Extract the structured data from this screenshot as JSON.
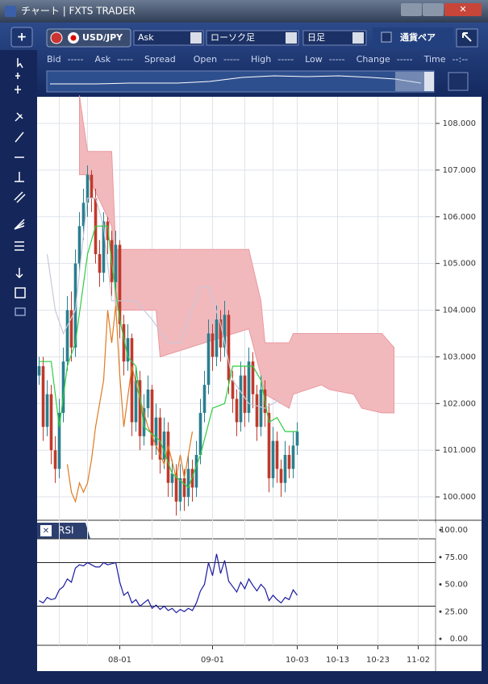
{
  "window": {
    "title": "チャート | FXTS TRADER"
  },
  "toolbar": {
    "symbol": "USD/JPY",
    "price_type": "Ask",
    "chart_type": "ローソク足",
    "period": "日足",
    "checkbox_label": "通貨ペア"
  },
  "quote_bar": [
    {
      "label": "Bid",
      "value": "-----"
    },
    {
      "label": "Ask",
      "value": "-----"
    },
    {
      "label": "Spread"
    },
    {
      "label": "Open",
      "value": "-----"
    },
    {
      "label": "High",
      "value": "-----"
    },
    {
      "label": "Low",
      "value": "-----"
    },
    {
      "label": "Change",
      "value": "-----"
    },
    {
      "label": "Time",
      "value": "--:--"
    }
  ],
  "price_chart": {
    "xlim": [
      -0.5,
      98.3
    ],
    "ylim": [
      99.5,
      108.57
    ],
    "yticks": [
      {
        "value": 100,
        "label": "100.000"
      },
      {
        "value": 101,
        "label": "101.000"
      },
      {
        "value": 102,
        "label": "102.000"
      },
      {
        "value": 103,
        "label": "103.000"
      },
      {
        "value": 104,
        "label": "104.000"
      },
      {
        "value": 105,
        "label": "105.000"
      },
      {
        "value": 106,
        "label": "106.000"
      },
      {
        "value": 107,
        "label": "107.000"
      },
      {
        "value": 108,
        "label": "108.000"
      }
    ],
    "xticks": [
      {
        "value": 20,
        "label": "08-01"
      },
      {
        "value": 43,
        "label": "09-01"
      },
      {
        "value": 64,
        "label": "10-03"
      },
      {
        "value": 74,
        "label": "10-13"
      },
      {
        "value": 84,
        "label": "10-23"
      },
      {
        "value": 94,
        "label": "11-02"
      }
    ],
    "xgrid": [
      5,
      12,
      28,
      35,
      51,
      58
    ],
    "up_color": "#2a7f8f",
    "down_color": "#c0392b",
    "open": [
      102.6,
      102.8,
      101.5,
      102.2,
      101.0,
      100.6,
      101.8,
      102.9,
      104.0,
      103.2,
      105.0,
      105.8,
      106.3,
      106.9,
      106.4,
      105.2,
      104.8,
      105.9,
      105.5,
      104.6,
      105.4,
      103.7,
      102.9,
      103.4,
      101.6,
      102.5,
      101.3,
      101.9,
      102.3,
      101.1,
      101.7,
      100.8,
      101.4,
      100.3,
      100.5,
      99.9,
      100.4,
      100.0,
      100.6,
      100.2,
      100.9,
      101.8,
      102.4,
      103.5,
      103.0,
      103.8,
      103.2,
      103.9,
      102.5,
      102.1,
      101.6,
      102.6,
      101.8,
      102.9,
      102.2,
      101.5,
      102.3,
      101.8,
      100.4,
      101.2,
      100.6,
      100.3,
      100.9,
      100.6,
      101.1
    ],
    "high": [
      103.0,
      103.0,
      102.5,
      102.4,
      101.3,
      102.1,
      103.2,
      104.3,
      104.4,
      105.3,
      106.1,
      106.6,
      107.1,
      107.0,
      106.6,
      105.5,
      106.1,
      106.0,
      105.7,
      105.7,
      105.5,
      103.9,
      103.7,
      103.5,
      102.8,
      102.7,
      102.2,
      102.6,
      102.4,
      102.0,
      101.9,
      101.7,
      101.6,
      100.8,
      100.7,
      100.7,
      100.6,
      100.9,
      100.8,
      101.2,
      102.1,
      102.7,
      103.8,
      103.7,
      104.1,
      104.0,
      104.2,
      104.0,
      102.7,
      102.3,
      102.9,
      102.8,
      103.2,
      103.1,
      102.4,
      102.6,
      102.5,
      102.0,
      101.5,
      101.4,
      100.8,
      101.2,
      101.1,
      101.4,
      101.6
    ],
    "low": [
      102.4,
      101.2,
      101.3,
      100.7,
      100.3,
      100.4,
      101.6,
      102.7,
      102.9,
      103.0,
      104.8,
      105.5,
      106.0,
      106.1,
      105.0,
      104.5,
      104.6,
      105.2,
      104.3,
      104.4,
      103.4,
      102.6,
      102.7,
      101.3,
      101.4,
      101.0,
      101.1,
      101.7,
      100.8,
      100.9,
      100.5,
      100.6,
      100.0,
      100.0,
      99.6,
      99.7,
      99.7,
      99.8,
      99.9,
      100.0,
      100.7,
      101.6,
      102.2,
      102.7,
      102.8,
      102.9,
      103.0,
      102.2,
      101.8,
      101.3,
      101.4,
      101.5,
      101.6,
      101.9,
      101.2,
      101.3,
      101.5,
      100.1,
      100.2,
      100.3,
      100.0,
      100.1,
      100.4,
      100.4,
      100.9
    ],
    "close": [
      102.8,
      101.5,
      102.2,
      101.0,
      100.6,
      101.8,
      102.9,
      104.0,
      103.2,
      105.0,
      105.8,
      106.3,
      106.9,
      106.4,
      105.2,
      104.8,
      105.9,
      105.5,
      104.6,
      105.4,
      103.7,
      102.9,
      103.4,
      101.6,
      102.5,
      101.3,
      101.9,
      102.3,
      101.1,
      101.7,
      100.8,
      101.4,
      100.3,
      100.5,
      99.9,
      100.4,
      100.0,
      100.6,
      100.2,
      100.9,
      101.8,
      102.4,
      103.5,
      103.0,
      103.8,
      103.2,
      103.9,
      102.5,
      102.1,
      101.6,
      102.6,
      101.8,
      102.9,
      102.2,
      101.5,
      102.3,
      101.8,
      100.4,
      101.2,
      100.6,
      100.3,
      100.9,
      100.6,
      101.1,
      101.4
    ],
    "cloud": {
      "color": "#f2b9bd",
      "x": [
        10,
        12,
        18,
        19,
        29,
        30,
        52,
        55,
        56,
        62,
        63,
        70,
        72,
        78,
        80,
        85,
        88
      ],
      "upper": [
        108.6,
        107.4,
        107.4,
        105.3,
        105.3,
        105.3,
        105.3,
        104.2,
        103.3,
        103.3,
        103.5,
        103.5,
        103.5,
        103.5,
        103.5,
        103.5,
        103.2
      ],
      "lower": [
        106.9,
        106.9,
        105.8,
        104.0,
        104.0,
        103.0,
        103.6,
        102.6,
        102.2,
        101.9,
        102.2,
        102.4,
        102.3,
        102.2,
        101.9,
        101.8,
        101.8
      ]
    },
    "lines": [
      {
        "color": "#c8c8d8",
        "x": [
          2,
          4,
          6,
          9,
          12,
          14,
          16,
          18,
          24,
          28,
          32,
          35,
          37,
          40,
          42,
          45,
          48,
          52,
          56,
          60
        ],
        "values": [
          105.2,
          104.0,
          103.5,
          104.0,
          106.4,
          106.4,
          105.8,
          104.2,
          104.2,
          103.8,
          103.3,
          103.3,
          103.8,
          104.5,
          104.5,
          103.7,
          102.5,
          102.0,
          101.9,
          102.1
        ]
      },
      {
        "color": "#e07a20",
        "x": [
          7,
          8,
          9,
          10,
          11,
          12,
          13,
          14,
          16,
          17,
          18,
          19,
          20,
          21,
          23,
          25,
          27,
          29,
          31,
          32,
          34,
          35,
          36,
          38
        ],
        "values": [
          100.7,
          100.1,
          99.9,
          100.3,
          100.1,
          100.3,
          100.8,
          101.5,
          102.5,
          104.0,
          103.3,
          104.1,
          102.6,
          101.5,
          102.8,
          102.1,
          101.5,
          101.1,
          100.7,
          101.1,
          100.4,
          100.9,
          100.4,
          101.4
        ]
      },
      {
        "color": "#2ecc40",
        "x": [
          0,
          3,
          5,
          7,
          9,
          12,
          14,
          17,
          18,
          20,
          22,
          24,
          26,
          30,
          33,
          37,
          40,
          43,
          46,
          48,
          53,
          55,
          57,
          59,
          61,
          64
        ],
        "values": [
          102.9,
          102.9,
          101.5,
          102.8,
          103.3,
          105.2,
          105.8,
          105.8,
          105.0,
          103.8,
          103.0,
          102.8,
          101.5,
          101.2,
          100.5,
          100.2,
          100.9,
          101.9,
          102.0,
          102.8,
          102.8,
          102.5,
          101.6,
          101.7,
          101.4,
          101.4
        ]
      }
    ]
  },
  "rsi": {
    "title": "RSI",
    "ylim": [
      0,
      100
    ],
    "color": "#1a1aa0",
    "yticks": [
      {
        "value": 0,
        "label": "0.00"
      },
      {
        "value": 25,
        "label": "25.00"
      },
      {
        "value": 50,
        "label": "50.00"
      },
      {
        "value": 75,
        "label": "75.00"
      },
      {
        "value": 100,
        "label": "100.00"
      }
    ],
    "levels": [
      70,
      30
    ],
    "values": [
      35,
      33,
      38,
      36,
      37,
      45,
      48,
      55,
      52,
      65,
      68,
      67,
      70,
      68,
      66,
      66,
      70,
      68,
      69,
      70,
      52,
      40,
      43,
      33,
      36,
      30,
      33,
      36,
      28,
      31,
      27,
      30,
      26,
      28,
      24,
      27,
      25,
      28,
      26,
      33,
      44,
      50,
      70,
      58,
      78,
      60,
      72,
      53,
      48,
      43,
      52,
      46,
      55,
      49,
      44,
      50,
      46,
      35,
      40,
      36,
      33,
      38,
      36,
      45,
      40
    ]
  }
}
